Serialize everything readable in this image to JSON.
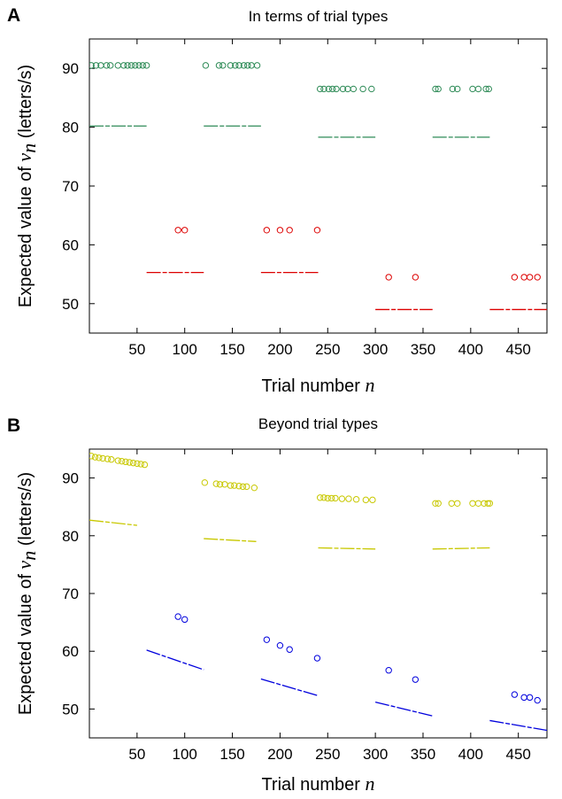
{
  "chart_data": [
    {
      "panel_label": "A",
      "type": "scatter",
      "title": "In terms of trial types",
      "xlabel": {
        "text": "Trial number ",
        "var": "n"
      },
      "ylabel": {
        "text": "Expected value of ",
        "var": "v",
        "sub": "n",
        "unit": " (letters/s)"
      },
      "xlim": [
        0,
        480
      ],
      "ylim": [
        45,
        95
      ],
      "xticks": [
        50,
        100,
        150,
        200,
        250,
        300,
        350,
        400,
        450
      ],
      "yticks": [
        50,
        60,
        70,
        80,
        90
      ],
      "grid": false,
      "series": [
        {
          "kind": "circles",
          "color": "#2e8b57",
          "points": [
            [
              2,
              90.5
            ],
            [
              7,
              90.5
            ],
            [
              12,
              90.5
            ],
            [
              18,
              90.5
            ],
            [
              22,
              90.5
            ],
            [
              30,
              90.5
            ],
            [
              36,
              90.5
            ],
            [
              40,
              90.5
            ],
            [
              44,
              90.5
            ],
            [
              48,
              90.5
            ],
            [
              52,
              90.5
            ],
            [
              56,
              90.5
            ],
            [
              60,
              90.5
            ],
            [
              122,
              90.5
            ],
            [
              136,
              90.5
            ],
            [
              140,
              90.5
            ],
            [
              148,
              90.5
            ],
            [
              153,
              90.5
            ],
            [
              157,
              90.5
            ],
            [
              162,
              90.5
            ],
            [
              166,
              90.5
            ],
            [
              170,
              90.5
            ],
            [
              176,
              90.5
            ],
            [
              242,
              86.5
            ],
            [
              246,
              86.5
            ],
            [
              251,
              86.5
            ],
            [
              255,
              86.5
            ],
            [
              259,
              86.5
            ],
            [
              266,
              86.5
            ],
            [
              271,
              86.5
            ],
            [
              277,
              86.5
            ],
            [
              287,
              86.5
            ],
            [
              296,
              86.5
            ],
            [
              363,
              86.5
            ],
            [
              366,
              86.5
            ],
            [
              381,
              86.5
            ],
            [
              386,
              86.5
            ],
            [
              402,
              86.5
            ],
            [
              408,
              86.5
            ],
            [
              416,
              86.5
            ],
            [
              419,
              86.5
            ]
          ]
        },
        {
          "kind": "dashes",
          "color": "#2e8b57",
          "segments": [
            [
              [
                0,
                80.2
              ],
              [
                60,
                80.2
              ]
            ],
            [
              [
                120,
                80.2
              ],
              [
                180,
                80.2
              ]
            ],
            [
              [
                240,
                78.3
              ],
              [
                300,
                78.3
              ]
            ],
            [
              [
                360,
                78.3
              ],
              [
                420,
                78.3
              ]
            ]
          ]
        },
        {
          "kind": "circles",
          "color": "#dd0000",
          "points": [
            [
              93,
              62.5
            ],
            [
              100,
              62.5
            ],
            [
              186,
              62.5
            ],
            [
              200,
              62.5
            ],
            [
              210,
              62.5
            ],
            [
              239,
              62.5
            ],
            [
              314,
              54.5
            ],
            [
              342,
              54.5
            ],
            [
              446,
              54.5
            ],
            [
              456,
              54.5
            ],
            [
              462,
              54.5
            ],
            [
              470,
              54.5
            ]
          ]
        },
        {
          "kind": "dashes",
          "color": "#dd0000",
          "segments": [
            [
              [
                60,
                55.3
              ],
              [
                120,
                55.3
              ]
            ],
            [
              [
                180,
                55.3
              ],
              [
                240,
                55.3
              ]
            ],
            [
              [
                300,
                49.0
              ],
              [
                360,
                49.0
              ]
            ],
            [
              [
                420,
                49.0
              ],
              [
                480,
                49.0
              ]
            ]
          ]
        }
      ]
    },
    {
      "panel_label": "B",
      "type": "scatter",
      "title": "Beyond trial types",
      "xlabel": {
        "text": "Trial number ",
        "var": "n"
      },
      "ylabel": {
        "text": "Expected value of ",
        "var": "v",
        "sub": "n",
        "unit": " (letters/s)"
      },
      "xlim": [
        0,
        480
      ],
      "ylim": [
        45,
        95
      ],
      "xticks": [
        50,
        100,
        150,
        200,
        250,
        300,
        350,
        400,
        450
      ],
      "yticks": [
        50,
        60,
        70,
        80,
        90
      ],
      "grid": false,
      "series": [
        {
          "kind": "circles",
          "color": "#c8c800",
          "points": [
            [
              2,
              93.8
            ],
            [
              6,
              93.6
            ],
            [
              10,
              93.5
            ],
            [
              14,
              93.4
            ],
            [
              19,
              93.3
            ],
            [
              23,
              93.2
            ],
            [
              30,
              93.0
            ],
            [
              34,
              92.9
            ],
            [
              38,
              92.8
            ],
            [
              42,
              92.7
            ],
            [
              46,
              92.6
            ],
            [
              50,
              92.5
            ],
            [
              54,
              92.4
            ],
            [
              58,
              92.3
            ],
            [
              121,
              89.2
            ],
            [
              133,
              89.0
            ],
            [
              137,
              88.9
            ],
            [
              142,
              88.9
            ],
            [
              148,
              88.7
            ],
            [
              152,
              88.7
            ],
            [
              157,
              88.6
            ],
            [
              161,
              88.5
            ],
            [
              165,
              88.5
            ],
            [
              173,
              88.3
            ],
            [
              242,
              86.6
            ],
            [
              246,
              86.6
            ],
            [
              250,
              86.5
            ],
            [
              254,
              86.5
            ],
            [
              258,
              86.5
            ],
            [
              265,
              86.4
            ],
            [
              272,
              86.4
            ],
            [
              280,
              86.3
            ],
            [
              290,
              86.2
            ],
            [
              297,
              86.2
            ],
            [
              363,
              85.6
            ],
            [
              366,
              85.6
            ],
            [
              380,
              85.6
            ],
            [
              386,
              85.6
            ],
            [
              402,
              85.6
            ],
            [
              408,
              85.6
            ],
            [
              414,
              85.6
            ],
            [
              418,
              85.6
            ],
            [
              420,
              85.6
            ]
          ]
        },
        {
          "kind": "dashes",
          "color": "#c8c800",
          "segments": [
            [
              [
                0,
                82.7
              ],
              [
                50,
                81.8
              ]
            ],
            [
              [
                120,
                79.5
              ],
              [
                175,
                79.0
              ]
            ],
            [
              [
                240,
                77.9
              ],
              [
                300,
                77.7
              ]
            ],
            [
              [
                360,
                77.7
              ],
              [
                420,
                77.9
              ]
            ]
          ]
        },
        {
          "kind": "circles",
          "color": "#0000dd",
          "points": [
            [
              93,
              66.0
            ],
            [
              100,
              65.5
            ],
            [
              186,
              62.0
            ],
            [
              200,
              61.0
            ],
            [
              210,
              60.3
            ],
            [
              239,
              58.8
            ],
            [
              314,
              56.7
            ],
            [
              342,
              55.1
            ],
            [
              446,
              52.5
            ],
            [
              456,
              52.0
            ],
            [
              462,
              52.0
            ],
            [
              470,
              51.5
            ]
          ]
        },
        {
          "kind": "dashes",
          "color": "#0000dd",
          "segments": [
            [
              [
                60,
                60.2
              ],
              [
                120,
                56.8
              ]
            ],
            [
              [
                180,
                55.2
              ],
              [
                240,
                52.3
              ]
            ],
            [
              [
                300,
                51.2
              ],
              [
                360,
                48.8
              ]
            ],
            [
              [
                420,
                48.0
              ],
              [
                480,
                46.3
              ]
            ]
          ]
        }
      ]
    }
  ]
}
